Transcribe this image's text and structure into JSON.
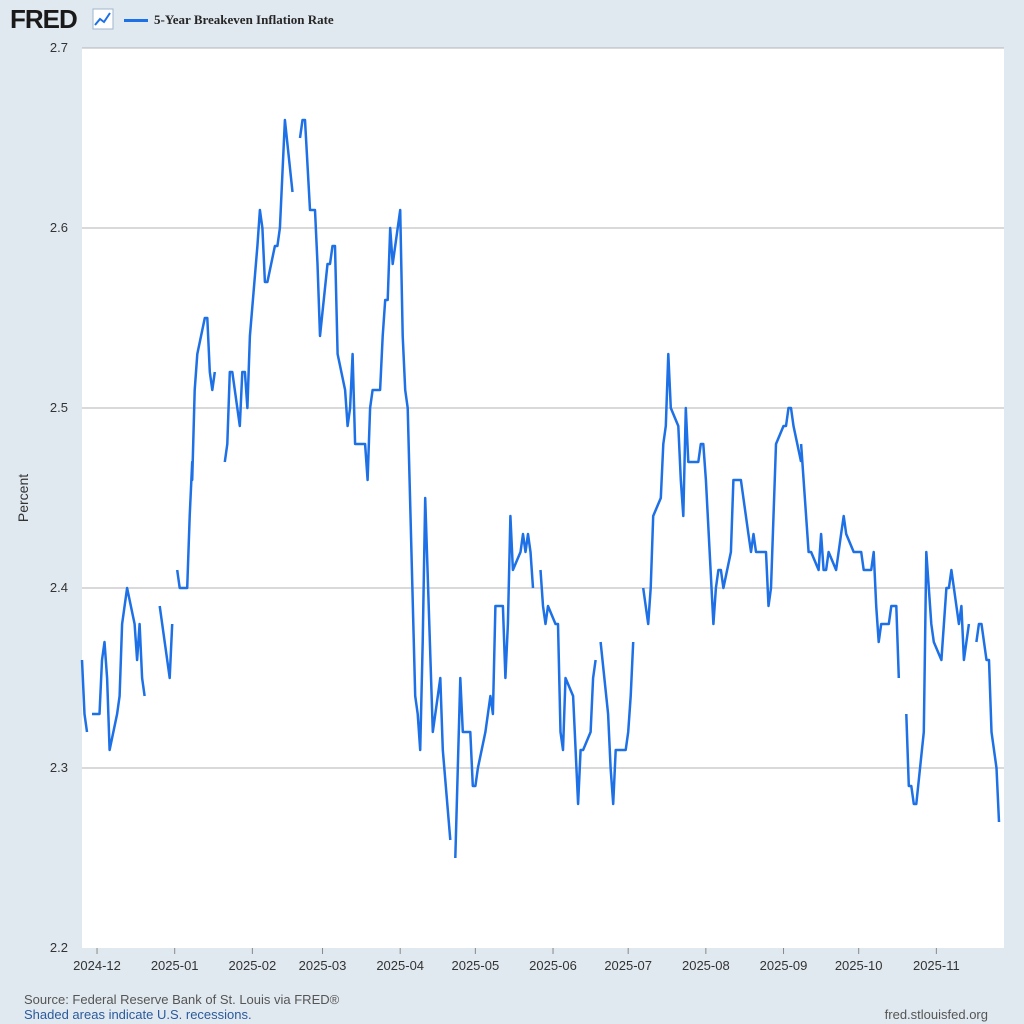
{
  "header": {
    "logo_text": "FRED",
    "logo_mark_icon": "chart-line-icon"
  },
  "footer": {
    "source": "Source: Federal Reserve Bank of St. Louis via FRED®",
    "shaded_note": "Shaded areas indicate U.S. recessions.",
    "site": "fred.stlouisfed.org"
  },
  "colors": {
    "series": "#1d70e5",
    "background": "#e1e9f0",
    "plot_bg": "#ffffff",
    "grid": "#b3b3b3"
  },
  "chart_data": {
    "type": "line",
    "title": "",
    "xlabel": "",
    "ylabel": "Percent",
    "ylim": [
      2.2,
      2.7
    ],
    "yticks": [
      "2.2",
      "2.3",
      "2.4",
      "2.5",
      "2.6",
      "2.7"
    ],
    "xlim": [
      "2024-11-25",
      "2025-11-28"
    ],
    "xticks": [
      "2024-12",
      "2025-01",
      "2025-02",
      "2025-03",
      "2025-04",
      "2025-05",
      "2025-06",
      "2025-07",
      "2025-08",
      "2025-09",
      "2025-10",
      "2025-11"
    ],
    "legend": "top-left",
    "grid": true,
    "series": [
      {
        "name": "5-Year Breakeven Inflation Rate",
        "points": [
          [
            "2024-11-25",
            2.36
          ],
          [
            "2024-11-26",
            2.33
          ],
          [
            "2024-11-27",
            2.32
          ],
          null,
          [
            "2024-11-29",
            2.33
          ],
          [
            "2024-12-02",
            2.33
          ],
          [
            "2024-12-03",
            2.36
          ],
          [
            "2024-12-04",
            2.37
          ],
          [
            "2024-12-05",
            2.35
          ],
          [
            "2024-12-06",
            2.31
          ],
          [
            "2024-12-09",
            2.33
          ],
          [
            "2024-12-10",
            2.34
          ],
          [
            "2024-12-11",
            2.38
          ],
          [
            "2024-12-12",
            2.39
          ],
          [
            "2024-12-13",
            2.4
          ],
          [
            "2024-12-16",
            2.38
          ],
          [
            "2024-12-17",
            2.36
          ],
          [
            "2024-12-18",
            2.38
          ],
          [
            "2024-12-19",
            2.35
          ],
          [
            "2024-12-20",
            2.34
          ],
          null,
          [
            "2024-12-26",
            2.39
          ],
          [
            "2024-12-27",
            2.38
          ],
          [
            "2024-12-30",
            2.35
          ],
          [
            "2024-12-31",
            2.38
          ],
          null,
          [
            "2025-01-02",
            2.41
          ],
          [
            "2025-01-03",
            2.4
          ],
          [
            "2025-01-06",
            2.4
          ],
          [
            "2025-01-07",
            2.44
          ],
          [
            "2025-01-08",
            2.47
          ],
          [
            "2025-01-08",
            2.46
          ],
          [
            "2025-01-09",
            2.51
          ],
          [
            "2025-01-10",
            2.53
          ],
          [
            "2025-01-13",
            2.55
          ],
          [
            "2025-01-14",
            2.55
          ],
          [
            "2025-01-15",
            2.52
          ],
          [
            "2025-01-16",
            2.51
          ],
          [
            "2025-01-17",
            2.52
          ],
          null,
          [
            "2025-01-21",
            2.47
          ],
          [
            "2025-01-22",
            2.48
          ],
          [
            "2025-01-23",
            2.52
          ],
          [
            "2025-01-24",
            2.52
          ],
          [
            "2025-01-27",
            2.49
          ],
          [
            "2025-01-28",
            2.52
          ],
          [
            "2025-01-29",
            2.52
          ],
          [
            "2025-01-30",
            2.5
          ],
          [
            "2025-01-31",
            2.54
          ],
          [
            "2025-02-03",
            2.59
          ],
          [
            "2025-02-04",
            2.61
          ],
          [
            "2025-02-05",
            2.6
          ],
          [
            "2025-02-06",
            2.57
          ],
          [
            "2025-02-07",
            2.57
          ],
          [
            "2025-02-10",
            2.59
          ],
          [
            "2025-02-11",
            2.59
          ],
          [
            "2025-02-12",
            2.6
          ],
          [
            "2025-02-13",
            2.63
          ],
          [
            "2025-02-14",
            2.66
          ],
          [
            "2025-02-17",
            2.62
          ],
          null,
          [
            "2025-02-20",
            2.65
          ],
          [
            "2025-02-21",
            2.66
          ],
          [
            "2025-02-22",
            2.66
          ],
          [
            "2025-02-24",
            2.61
          ],
          [
            "2025-02-25",
            2.61
          ],
          [
            "2025-02-26",
            2.61
          ],
          [
            "2025-02-27",
            2.58
          ],
          [
            "2025-02-28",
            2.54
          ],
          [
            "2025-03-03",
            2.58
          ],
          [
            "2025-03-04",
            2.58
          ],
          [
            "2025-03-05",
            2.59
          ],
          [
            "2025-03-06",
            2.59
          ],
          [
            "2025-03-07",
            2.53
          ],
          [
            "2025-03-10",
            2.51
          ],
          [
            "2025-03-11",
            2.49
          ],
          [
            "2025-03-12",
            2.5
          ],
          [
            "2025-03-13",
            2.53
          ],
          [
            "2025-03-14",
            2.48
          ],
          [
            "2025-03-17",
            2.48
          ],
          [
            "2025-03-18",
            2.48
          ],
          [
            "2025-03-19",
            2.46
          ],
          [
            "2025-03-20",
            2.5
          ],
          [
            "2025-03-21",
            2.51
          ],
          [
            "2025-03-24",
            2.51
          ],
          [
            "2025-03-25",
            2.54
          ],
          [
            "2025-03-26",
            2.56
          ],
          [
            "2025-03-27",
            2.56
          ],
          [
            "2025-03-28",
            2.6
          ],
          [
            "2025-03-29",
            2.58
          ],
          [
            "2025-03-31",
            2.6
          ],
          [
            "2025-04-01",
            2.61
          ],
          [
            "2025-04-02",
            2.54
          ],
          [
            "2025-04-03",
            2.51
          ],
          [
            "2025-04-04",
            2.5
          ],
          [
            "2025-04-07",
            2.34
          ],
          [
            "2025-04-08",
            2.33
          ],
          [
            "2025-04-09",
            2.31
          ],
          [
            "2025-04-10",
            2.37
          ],
          [
            "2025-04-11",
            2.45
          ],
          [
            "2025-04-14",
            2.32
          ],
          [
            "2025-04-15",
            2.33
          ],
          [
            "2025-04-16",
            2.34
          ],
          [
            "2025-04-17",
            2.35
          ],
          [
            "2025-04-18",
            2.31
          ],
          [
            "2025-04-21",
            2.26
          ],
          null,
          [
            "2025-04-23",
            2.25
          ],
          [
            "2025-04-24",
            2.3
          ],
          [
            "2025-04-25",
            2.35
          ],
          [
            "2025-04-26",
            2.32
          ],
          [
            "2025-04-28",
            2.32
          ],
          [
            "2025-04-29",
            2.32
          ],
          [
            "2025-04-30",
            2.29
          ],
          [
            "2025-05-01",
            2.29
          ],
          [
            "2025-05-02",
            2.3
          ],
          [
            "2025-05-05",
            2.32
          ],
          [
            "2025-05-06",
            2.33
          ],
          [
            "2025-05-07",
            2.34
          ],
          [
            "2025-05-08",
            2.33
          ],
          [
            "2025-05-09",
            2.39
          ],
          [
            "2025-05-12",
            2.39
          ],
          [
            "2025-05-13",
            2.35
          ],
          [
            "2025-05-14",
            2.38
          ],
          [
            "2025-05-15",
            2.44
          ],
          [
            "2025-05-16",
            2.41
          ],
          [
            "2025-05-19",
            2.42
          ],
          [
            "2025-05-20",
            2.43
          ],
          [
            "2025-05-21",
            2.42
          ],
          [
            "2025-05-22",
            2.43
          ],
          [
            "2025-05-23",
            2.42
          ],
          [
            "2025-05-24",
            2.4
          ],
          null,
          [
            "2025-05-27",
            2.41
          ],
          [
            "2025-05-28",
            2.39
          ],
          [
            "2025-05-29",
            2.38
          ],
          [
            "2025-05-30",
            2.39
          ],
          [
            "2025-06-02",
            2.38
          ],
          [
            "2025-06-03",
            2.38
          ],
          [
            "2025-06-04",
            2.32
          ],
          [
            "2025-06-05",
            2.31
          ],
          [
            "2025-06-06",
            2.35
          ],
          [
            "2025-06-09",
            2.34
          ],
          [
            "2025-06-10",
            2.31
          ],
          [
            "2025-06-11",
            2.28
          ],
          [
            "2025-06-12",
            2.31
          ],
          [
            "2025-06-13",
            2.31
          ],
          [
            "2025-06-16",
            2.32
          ],
          [
            "2025-06-17",
            2.35
          ],
          [
            "2025-06-18",
            2.36
          ],
          null,
          [
            "2025-06-20",
            2.37
          ],
          [
            "2025-06-23",
            2.33
          ],
          [
            "2025-06-24",
            2.3
          ],
          [
            "2025-06-25",
            2.28
          ],
          [
            "2025-06-26",
            2.31
          ],
          [
            "2025-06-27",
            2.31
          ],
          [
            "2025-06-30",
            2.31
          ],
          [
            "2025-07-01",
            2.32
          ],
          [
            "2025-07-02",
            2.34
          ],
          [
            "2025-07-03",
            2.37
          ],
          null,
          [
            "2025-07-07",
            2.4
          ],
          [
            "2025-07-08",
            2.39
          ],
          [
            "2025-07-09",
            2.38
          ],
          [
            "2025-07-10",
            2.4
          ],
          [
            "2025-07-11",
            2.44
          ],
          [
            "2025-07-14",
            2.45
          ],
          [
            "2025-07-15",
            2.48
          ],
          [
            "2025-07-16",
            2.49
          ],
          [
            "2025-07-17",
            2.53
          ],
          [
            "2025-07-18",
            2.5
          ],
          [
            "2025-07-21",
            2.49
          ],
          [
            "2025-07-22",
            2.46
          ],
          [
            "2025-07-23",
            2.44
          ],
          [
            "2025-07-24",
            2.5
          ],
          [
            "2025-07-25",
            2.47
          ],
          [
            "2025-07-28",
            2.47
          ],
          [
            "2025-07-29",
            2.47
          ],
          [
            "2025-07-30",
            2.48
          ],
          [
            "2025-07-31",
            2.48
          ],
          [
            "2025-08-01",
            2.46
          ],
          [
            "2025-08-04",
            2.38
          ],
          [
            "2025-08-05",
            2.4
          ],
          [
            "2025-08-06",
            2.41
          ],
          [
            "2025-08-07",
            2.41
          ],
          [
            "2025-08-08",
            2.4
          ],
          [
            "2025-08-11",
            2.42
          ],
          [
            "2025-08-12",
            2.46
          ],
          [
            "2025-08-13",
            2.46
          ],
          [
            "2025-08-14",
            2.46
          ],
          [
            "2025-08-15",
            2.46
          ],
          [
            "2025-08-18",
            2.43
          ],
          [
            "2025-08-19",
            2.42
          ],
          [
            "2025-08-20",
            2.43
          ],
          [
            "2025-08-21",
            2.42
          ],
          [
            "2025-08-22",
            2.42
          ],
          [
            "2025-08-25",
            2.42
          ],
          [
            "2025-08-26",
            2.39
          ],
          [
            "2025-08-27",
            2.4
          ],
          [
            "2025-08-28",
            2.44
          ],
          [
            "2025-08-29",
            2.48
          ],
          [
            "2025-09-01",
            2.49
          ],
          [
            "2025-09-02",
            2.49
          ],
          [
            "2025-09-03",
            2.5
          ],
          [
            "2025-09-04",
            2.5
          ],
          [
            "2025-09-05",
            2.49
          ],
          [
            "2025-09-08",
            2.47
          ],
          null,
          [
            "2025-09-08",
            2.48
          ],
          [
            "2025-09-09",
            2.46
          ],
          [
            "2025-09-10",
            2.44
          ],
          [
            "2025-09-11",
            2.42
          ],
          [
            "2025-09-12",
            2.42
          ],
          [
            "2025-09-15",
            2.41
          ],
          [
            "2025-09-16",
            2.43
          ],
          [
            "2025-09-17",
            2.41
          ],
          [
            "2025-09-18",
            2.41
          ],
          [
            "2025-09-19",
            2.42
          ],
          [
            "2025-09-22",
            2.41
          ],
          [
            "2025-09-23",
            2.42
          ],
          [
            "2025-09-24",
            2.43
          ],
          [
            "2025-09-25",
            2.44
          ],
          [
            "2025-09-26",
            2.43
          ],
          [
            "2025-09-29",
            2.42
          ],
          [
            "2025-09-30",
            2.42
          ],
          [
            "2025-10-01",
            2.42
          ],
          [
            "2025-10-02",
            2.42
          ],
          [
            "2025-10-03",
            2.41
          ],
          [
            "2025-10-06",
            2.41
          ],
          [
            "2025-10-07",
            2.42
          ],
          [
            "2025-10-08",
            2.39
          ],
          [
            "2025-10-09",
            2.37
          ],
          [
            "2025-10-10",
            2.38
          ],
          [
            "2025-10-13",
            2.38
          ],
          [
            "2025-10-14",
            2.39
          ],
          [
            "2025-10-15",
            2.39
          ],
          [
            "2025-10-16",
            2.39
          ],
          [
            "2025-10-17",
            2.35
          ],
          null,
          [
            "2025-10-20",
            2.33
          ],
          [
            "2025-10-21",
            2.29
          ],
          [
            "2025-10-22",
            2.29
          ],
          [
            "2025-10-23",
            2.28
          ],
          [
            "2025-10-24",
            2.28
          ],
          [
            "2025-10-27",
            2.32
          ],
          [
            "2025-10-28",
            2.42
          ],
          [
            "2025-10-29",
            2.4
          ],
          [
            "2025-10-30",
            2.38
          ],
          [
            "2025-10-31",
            2.37
          ],
          [
            "2025-11-03",
            2.36
          ],
          [
            "2025-11-04",
            2.38
          ],
          [
            "2025-11-05",
            2.4
          ],
          [
            "2025-11-06",
            2.4
          ],
          [
            "2025-11-07",
            2.41
          ],
          [
            "2025-11-10",
            2.38
          ],
          [
            "2025-11-11",
            2.39
          ],
          [
            "2025-11-12",
            2.36
          ],
          [
            "2025-11-13",
            2.37
          ],
          [
            "2025-11-14",
            2.38
          ],
          null,
          [
            "2025-11-17",
            2.37
          ],
          [
            "2025-11-18",
            2.38
          ],
          [
            "2025-11-19",
            2.38
          ],
          [
            "2025-11-20",
            2.37
          ],
          [
            "2025-11-21",
            2.36
          ],
          [
            "2025-11-22",
            2.36
          ],
          [
            "2025-11-23",
            2.32
          ],
          [
            "2025-11-25",
            2.3
          ],
          [
            "2025-11-26",
            2.27
          ]
        ]
      }
    ]
  }
}
